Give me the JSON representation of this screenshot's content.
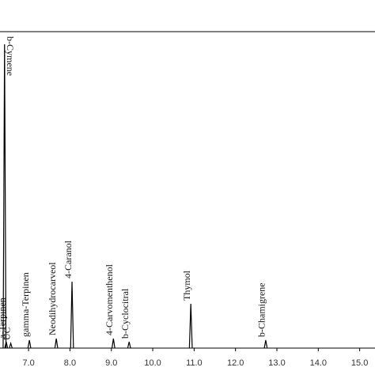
{
  "chart_data": {
    "type": "line",
    "x": [
      6.46,
      6.42,
      6.57,
      7.02,
      7.67,
      8.05,
      9.05,
      9.43,
      10.92,
      12.73
    ],
    "values": [
      2,
      96,
      1.5,
      2.5,
      3,
      21,
      3,
      2,
      14,
      2.5
    ],
    "peak_labels": [
      "a-Terpinen",
      "b-Cymene",
      "UC",
      "gamma-Terpinen",
      "Neodihydrocarveol",
      "4-Caranol",
      "4-Carvomenthenol",
      "b-Cyclocitral",
      "Thymol",
      "b-Chamigrene"
    ],
    "color": "#000000",
    "xlim": [
      6.31,
      15.37
    ],
    "ylim": [
      0,
      100
    ],
    "xticks": [
      {
        "value": 7,
        "label": "7.0"
      },
      {
        "value": 8,
        "label": "8.0"
      },
      {
        "value": 9,
        "label": "9.0"
      },
      {
        "value": 10,
        "label": "10.0"
      },
      {
        "value": 11,
        "label": "11.0"
      },
      {
        "value": 12,
        "label": "12.0"
      },
      {
        "value": 13,
        "label": "13.0"
      },
      {
        "value": 14,
        "label": "14.0"
      },
      {
        "value": 15,
        "label": "15.0"
      }
    ]
  }
}
